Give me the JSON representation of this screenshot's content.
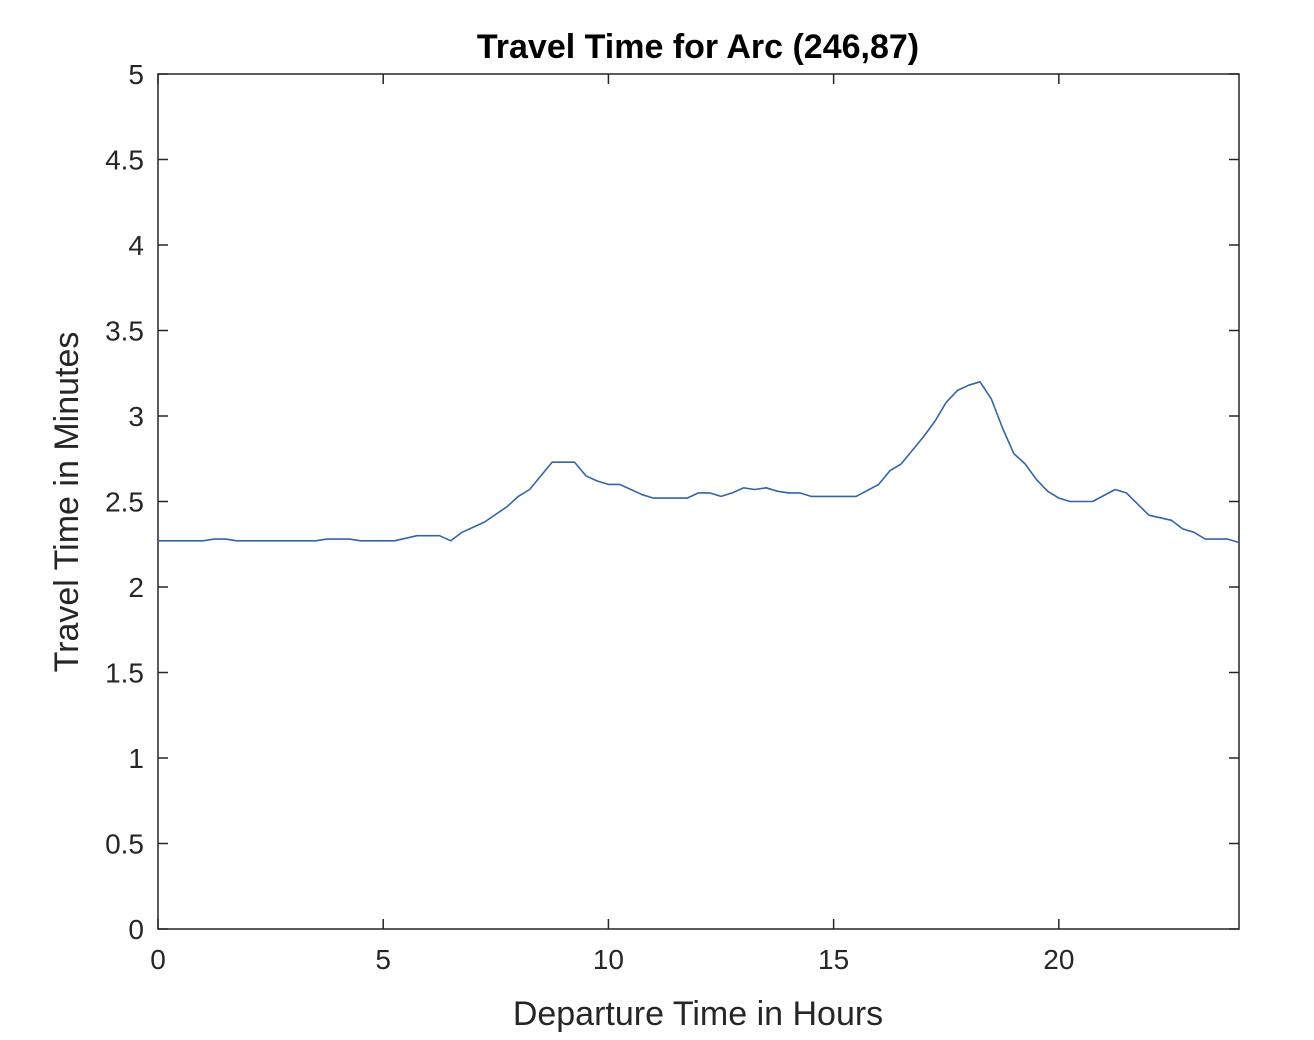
{
  "chart_data": {
    "type": "line",
    "title": "Travel Time for Arc (246,87)",
    "xlabel": "Departure Time in Hours",
    "ylabel": "Travel Time in Minutes",
    "xlim": [
      0,
      24
    ],
    "ylim": [
      0,
      5
    ],
    "xticks": [
      0,
      5,
      10,
      15,
      20
    ],
    "xtick_labels": [
      "0",
      "5",
      "10",
      "15",
      "20"
    ],
    "yticks": [
      0,
      0.5,
      1,
      1.5,
      2,
      2.5,
      3,
      3.5,
      4,
      4.5,
      5
    ],
    "ytick_labels": [
      "0",
      "0.5",
      "1",
      "1.5",
      "2",
      "2.5",
      "3",
      "3.5",
      "4",
      "4.5",
      "5"
    ],
    "grid": false,
    "line_color": "#3465a4",
    "series": [
      {
        "x": [
          0,
          1,
          1.25,
          1.5,
          1.75,
          2,
          3.5,
          3.75,
          4.25,
          4.5,
          5.25,
          5.75,
          6.25,
          6.5,
          6.75,
          7.25,
          7.75,
          8.0,
          8.25,
          8.75,
          9.25,
          9.5,
          9.75,
          10.0,
          10.25,
          10.5,
          10.75,
          11.0,
          11.75,
          12.0,
          12.25,
          12.5,
          12.75,
          13.0,
          13.25,
          13.5,
          13.75,
          14.0,
          14.25,
          14.5,
          14.75,
          15.5,
          16.0,
          16.25,
          16.5,
          17.0,
          17.25,
          17.5,
          17.75,
          18.0,
          18.25,
          18.5,
          18.75,
          19.0,
          19.25,
          19.5,
          19.75,
          20.0,
          20.25,
          20.75,
          21.25,
          21.5,
          22.0,
          22.5,
          22.75,
          23.0,
          23.25,
          23.75,
          24.0
        ],
        "y": [
          2.27,
          2.27,
          2.28,
          2.28,
          2.27,
          2.27,
          2.27,
          2.28,
          2.28,
          2.27,
          2.27,
          2.3,
          2.3,
          2.27,
          2.32,
          2.38,
          2.47,
          2.53,
          2.57,
          2.73,
          2.73,
          2.65,
          2.62,
          2.6,
          2.6,
          2.57,
          2.54,
          2.52,
          2.52,
          2.55,
          2.55,
          2.53,
          2.55,
          2.58,
          2.57,
          2.58,
          2.56,
          2.55,
          2.55,
          2.53,
          2.53,
          2.53,
          2.6,
          2.68,
          2.72,
          2.88,
          2.97,
          3.08,
          3.15,
          3.18,
          3.2,
          3.1,
          2.93,
          2.78,
          2.72,
          2.63,
          2.56,
          2.52,
          2.5,
          2.5,
          2.57,
          2.55,
          2.42,
          2.39,
          2.34,
          2.32,
          2.28,
          2.28,
          2.26
        ]
      }
    ]
  }
}
